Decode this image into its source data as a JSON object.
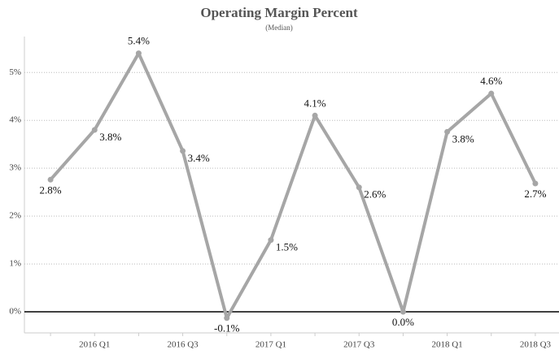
{
  "chart_data": {
    "type": "line",
    "title": "Operating Margin Percent",
    "subtitle": "(Median)",
    "categories": [
      null,
      "2016 Q1",
      null,
      "2016 Q3",
      null,
      "2017 Q1",
      null,
      "2017 Q3",
      null,
      "2018 Q1",
      null,
      "2018 Q3"
    ],
    "series": [
      {
        "name": "Operating Margin Percent",
        "color": "#a6a6a6",
        "values": [
          2.76,
          3.8,
          5.4,
          3.36,
          -0.13,
          1.5,
          4.1,
          2.6,
          0.0,
          3.76,
          4.56,
          2.68
        ],
        "value_labels": [
          "2.8%",
          "3.8%",
          "5.4%",
          "3.4%",
          "-0.1%",
          "1.5%",
          "4.1%",
          "2.6%",
          "0.0%",
          "3.8%",
          "4.6%",
          "2.7%"
        ]
      }
    ],
    "ylim": [
      -0.44,
      5.75
    ],
    "yticks": [
      {
        "value": 0,
        "label": "0%"
      },
      {
        "value": 1,
        "label": "1%"
      },
      {
        "value": 2,
        "label": "2%"
      },
      {
        "value": 3,
        "label": "3%"
      },
      {
        "value": 4,
        "label": "4%"
      },
      {
        "value": 5,
        "label": "5%"
      }
    ],
    "grid": true
  }
}
